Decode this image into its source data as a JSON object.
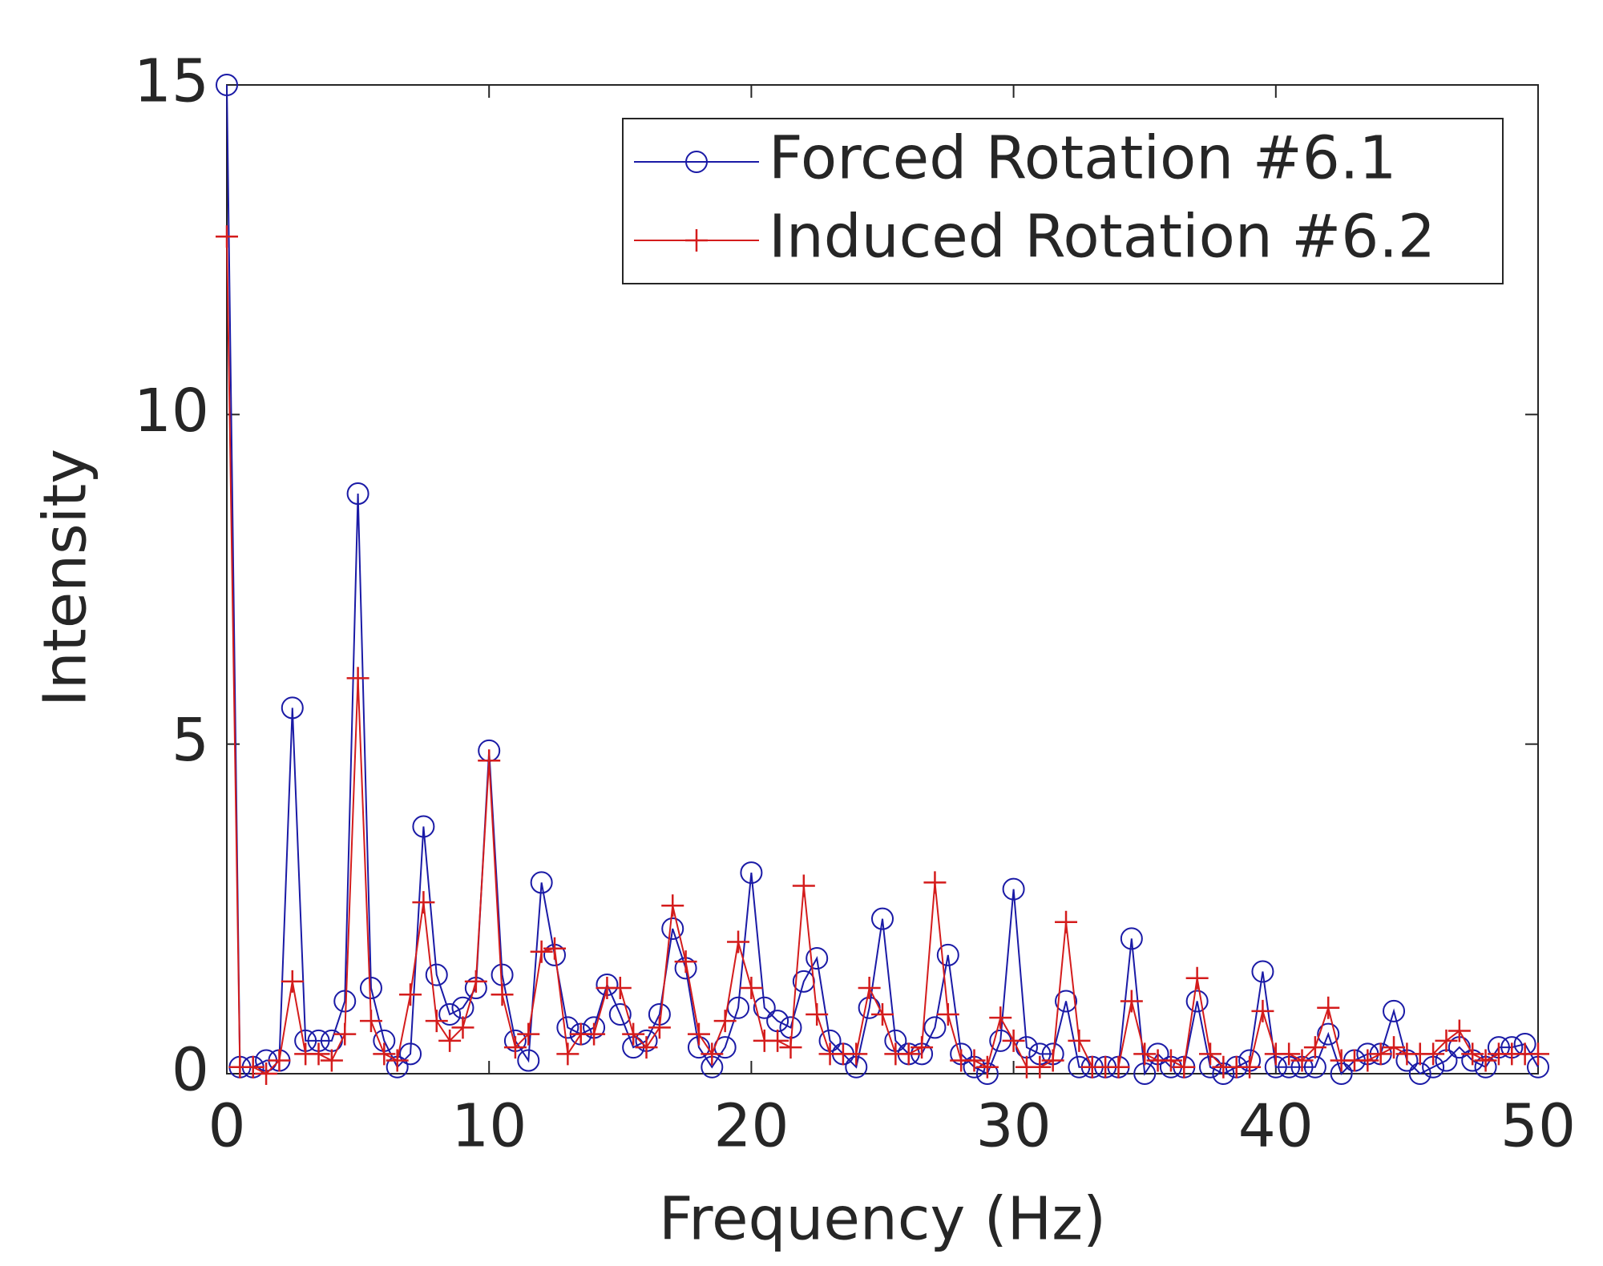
{
  "chart_data": {
    "type": "line",
    "xlabel": "Frequency (Hz)",
    "ylabel": "Intensity",
    "x": [
      0,
      0.5,
      1,
      1.5,
      2,
      2.5,
      3,
      3.5,
      4,
      4.5,
      5,
      5.5,
      6,
      6.5,
      7,
      7.5,
      8,
      8.5,
      9,
      9.5,
      10,
      10.5,
      11,
      11.5,
      12,
      12.5,
      13,
      13.5,
      14,
      14.5,
      15,
      15.5,
      16,
      16.5,
      17,
      17.5,
      18,
      18.5,
      19,
      19.5,
      20,
      20.5,
      21,
      21.5,
      22,
      22.5,
      23,
      23.5,
      24,
      24.5,
      25,
      25.5,
      26,
      26.5,
      27,
      27.5,
      28,
      28.5,
      29,
      29.5,
      30,
      30.5,
      31,
      31.5,
      32,
      32.5,
      33,
      33.5,
      34,
      34.5,
      35,
      35.5,
      36,
      36.5,
      37,
      37.5,
      38,
      38.5,
      39,
      39.5,
      40,
      40.5,
      41,
      41.5,
      42,
      42.5,
      43,
      43.5,
      44,
      44.5,
      45,
      45.5,
      46,
      46.5,
      47,
      47.5,
      48,
      48.5,
      49,
      49.5,
      50
    ],
    "series": [
      {
        "name": "Forced Rotation #6.1",
        "color": "#1a1aa6",
        "marker": "circle",
        "values": [
          15,
          0.1,
          0.1,
          0.2,
          0.2,
          5.55,
          0.5,
          0.5,
          0.5,
          1.1,
          8.8,
          1.3,
          0.5,
          0.1,
          0.3,
          3.75,
          1.5,
          0.9,
          1.0,
          1.3,
          4.9,
          1.5,
          0.5,
          0.2,
          2.9,
          1.8,
          0.7,
          0.6,
          0.7,
          1.35,
          0.9,
          0.4,
          0.5,
          0.9,
          2.2,
          1.6,
          0.4,
          0.1,
          0.4,
          1.0,
          3.05,
          1.0,
          0.8,
          0.7,
          1.4,
          1.75,
          0.5,
          0.3,
          0.1,
          1.0,
          2.35,
          0.5,
          0.3,
          0.3,
          0.7,
          1.8,
          0.3,
          0.1,
          0.0,
          0.5,
          2.8,
          0.4,
          0.3,
          0.3,
          1.1,
          0.1,
          0.1,
          0.1,
          0.1,
          2.05,
          0.0,
          0.3,
          0.1,
          0.1,
          1.1,
          0.1,
          0.0,
          0.1,
          0.2,
          1.55,
          0.1,
          0.1,
          0.1,
          0.1,
          0.6,
          0.0,
          0.2,
          0.3,
          0.3,
          0.95,
          0.2,
          0.0,
          0.1,
          0.2,
          0.4,
          0.2,
          0.1,
          0.4,
          0.4,
          0.45,
          0.1
        ]
      },
      {
        "name": "Induced Rotation #6.2",
        "color": "#d41c1c",
        "marker": "plus",
        "values": [
          12.7,
          0.1,
          0.1,
          0.0,
          0.2,
          1.4,
          0.3,
          0.3,
          0.2,
          0.6,
          6.0,
          0.8,
          0.3,
          0.2,
          1.2,
          2.6,
          0.8,
          0.5,
          0.7,
          1.4,
          4.75,
          1.2,
          0.4,
          0.6,
          1.85,
          1.9,
          0.3,
          0.6,
          0.6,
          1.3,
          1.3,
          0.6,
          0.4,
          0.7,
          2.55,
          1.7,
          0.6,
          0.3,
          0.8,
          2.0,
          1.3,
          0.5,
          0.5,
          0.4,
          2.85,
          0.9,
          0.3,
          0.3,
          0.3,
          1.3,
          0.9,
          0.3,
          0.3,
          0.4,
          2.9,
          0.9,
          0.2,
          0.2,
          0.1,
          0.85,
          0.5,
          0.1,
          0.1,
          0.2,
          2.3,
          0.5,
          0.1,
          0.1,
          0.1,
          1.1,
          0.3,
          0.2,
          0.2,
          0.1,
          1.45,
          0.3,
          0.1,
          0.1,
          0.1,
          0.95,
          0.3,
          0.3,
          0.2,
          0.4,
          1.0,
          0.2,
          0.2,
          0.2,
          0.3,
          0.4,
          0.3,
          0.3,
          0.3,
          0.5,
          0.65,
          0.3,
          0.2,
          0.3,
          0.3,
          0.3,
          0.3
        ]
      }
    ],
    "xlim": [
      0,
      50
    ],
    "xticks": [
      0,
      10,
      20,
      30,
      40,
      50
    ],
    "ylim": [
      0,
      15
    ],
    "yticks": [
      0,
      5,
      10,
      15
    ],
    "grid": false,
    "legend": "upper right"
  }
}
